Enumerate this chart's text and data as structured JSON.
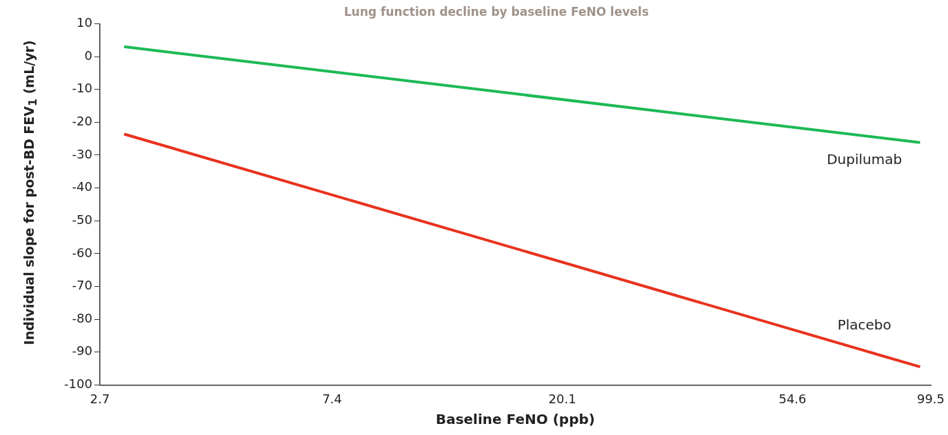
{
  "chart_data": {
    "type": "line",
    "title": "Lung function decline by baseline FeNO levels",
    "xlabel": "Baseline FeNO (ppb)",
    "ylabel": "Individual slope for post-BD FEV$_{1}$ (mL/yr)",
    "x": [
      3.0,
      95
    ],
    "series": [
      {
        "name": "Dupilumab",
        "color": "#1db954",
        "values": [
          3.0,
          -26.2
        ]
      },
      {
        "name": "Placebo",
        "color": "#e8321e",
        "values": [
          -23.6,
          -94.5
        ]
      }
    ],
    "log": "x",
    "xlim": [
      2.7,
      99.5
    ],
    "xticks": [
      2.7,
      7.4,
      20.1,
      54.6,
      99.5
    ],
    "ylim": [
      -100,
      10
    ],
    "yticks": [
      -100,
      -90,
      -80,
      -70,
      -60,
      -50,
      -40,
      -30,
      -20,
      -10,
      0,
      10
    ],
    "grid": false,
    "legend": false,
    "marker": "none",
    "line_style": "solid"
  }
}
